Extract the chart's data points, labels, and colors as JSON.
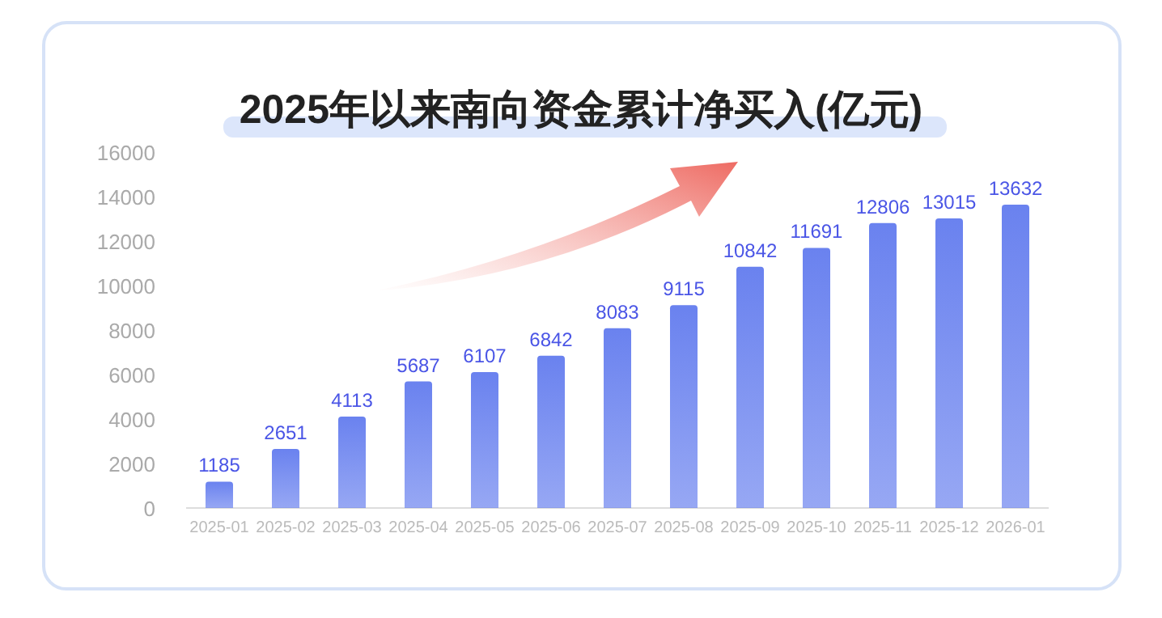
{
  "chart_data": {
    "type": "bar",
    "title": "2025年以来南向资金累计净买入(亿元)",
    "categories": [
      "2025-01",
      "2025-02",
      "2025-03",
      "2025-04",
      "2025-05",
      "2025-06",
      "2025-07",
      "2025-08",
      "2025-09",
      "2025-10",
      "2025-11",
      "2025-12",
      "2026-01"
    ],
    "values": [
      1185,
      2651,
      4113,
      5687,
      6107,
      6842,
      8083,
      9115,
      10842,
      11691,
      12806,
      13015,
      13632
    ],
    "color": "#6a82ef",
    "ylim": [
      0,
      16000
    ],
    "yticks": [
      0,
      2000,
      4000,
      6000,
      8000,
      10000,
      12000,
      14000,
      16000
    ],
    "grid": false,
    "data_labels": true
  }
}
